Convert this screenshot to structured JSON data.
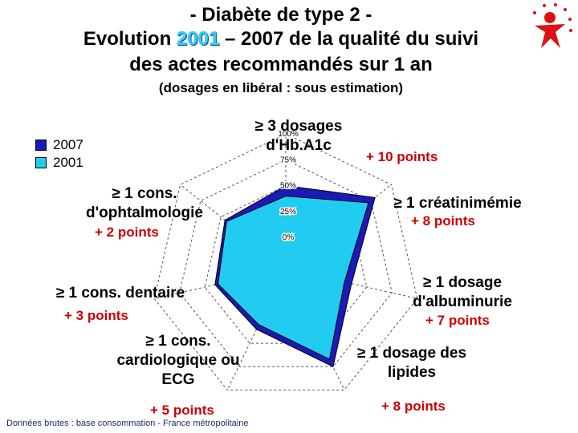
{
  "title": {
    "line1": "- Diabète de type 2 -",
    "line2_pre": "Evolution ",
    "line2_year": "2001",
    "line2_post": " – 2007 de la qualité du suivi",
    "line3": "des actes recommandés sur 1 an"
  },
  "subtitle": "(dosages en libéral : sous estimation)",
  "footer": "Données brutes : base consommation - France métropolitaine",
  "colors": {
    "series_2007": "#1a1ab8",
    "series_2001": "#22ccf0",
    "points": "#cc0000"
  },
  "chart_data": {
    "type": "radar",
    "axes": [
      {
        "label_l1": "≥ 3 dosages",
        "label_l2": "d'Hb.A1c",
        "points": "+ 10 points"
      },
      {
        "label_l1": "≥ 1 créatinimémie",
        "label_l2": "",
        "points": "+ 8 points"
      },
      {
        "label_l1": "≥ 1 dosage",
        "label_l2": "d'albuminurie",
        "points": "+ 7 points"
      },
      {
        "label_l1": "≥ 1 dosage des",
        "label_l2": "lipides",
        "points": "+ 8 points"
      },
      {
        "label_l1": "≥ 1 cons.",
        "label_l2": "cardiologique ou",
        "label_l3": "ECG",
        "points": "+ 5 points"
      },
      {
        "label_l1": "≥ 1 cons. dentaire",
        "label_l2": "",
        "points": "+ 3 points"
      },
      {
        "label_l1": "≥ 1 cons.",
        "label_l2": "d'ophtalmologie",
        "points": "+ 2 points"
      }
    ],
    "ticks": [
      "0%",
      "25%",
      "50%",
      "75%",
      "100%"
    ],
    "tick_values": [
      0,
      25,
      50,
      75,
      100
    ],
    "series": [
      {
        "name": "2007",
        "values": [
          50,
          80,
          35,
          75,
          35,
          40,
          45
        ]
      },
      {
        "name": "2001",
        "values": [
          40,
          72,
          28,
          67,
          30,
          37,
          43
        ]
      }
    ],
    "rmin": -30,
    "rmax": 100,
    "legend_position": "top-left"
  }
}
